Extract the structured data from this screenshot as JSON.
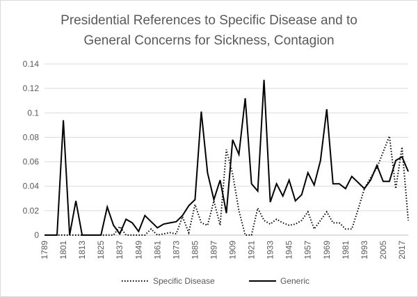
{
  "chart_data": {
    "type": "line",
    "title": "Presidential References to Specific Disease and to General Concerns for Sickness, Contagion",
    "title_lines": [
      "Presidential References to Specific Disease and to",
      "General Concerns for Sickness, Contagion"
    ],
    "xlabel": "",
    "ylabel": "",
    "ylim": [
      0,
      0.14
    ],
    "yticks": [
      "0",
      "0.02",
      "0.04",
      "0.06",
      "0.08",
      "0.1",
      "0.12",
      "0.14"
    ],
    "xticks": [
      "1789",
      "1801",
      "1813",
      "1825",
      "1837",
      "1849",
      "1861",
      "1873",
      "1885",
      "1897",
      "1909",
      "1921",
      "1933",
      "1945",
      "1957",
      "1969",
      "1981",
      "1993",
      "2005",
      "2017"
    ],
    "grid": "horizontal",
    "legend_position": "bottom",
    "x": [
      1789,
      1793,
      1797,
      1801,
      1805,
      1809,
      1813,
      1817,
      1821,
      1825,
      1829,
      1833,
      1837,
      1841,
      1845,
      1849,
      1853,
      1857,
      1861,
      1865,
      1869,
      1873,
      1877,
      1881,
      1885,
      1889,
      1893,
      1897,
      1901,
      1905,
      1909,
      1913,
      1917,
      1921,
      1925,
      1929,
      1933,
      1937,
      1941,
      1945,
      1949,
      1953,
      1957,
      1961,
      1965,
      1969,
      1973,
      1977,
      1981,
      1985,
      1989,
      1993,
      1997,
      2001,
      2005,
      2009,
      2013,
      2017,
      2021
    ],
    "series": [
      {
        "name": "Specific Disease",
        "style": "dotted",
        "color": "#000000",
        "values": [
          0,
          0,
          0,
          0,
          0,
          0,
          0,
          0,
          0,
          0,
          0,
          0,
          0.007,
          0,
          0,
          0,
          0,
          0.005,
          0,
          0.001,
          0.002,
          0.001,
          0.015,
          0.002,
          0.025,
          0.01,
          0.008,
          0.028,
          0.008,
          0.07,
          0.05,
          0.02,
          0,
          0,
          0.022,
          0.012,
          0.009,
          0.013,
          0.01,
          0.008,
          0.009,
          0.012,
          0.019,
          0.005,
          0.012,
          0.019,
          0.01,
          0.01,
          0.005,
          0.005,
          0.021,
          0.038,
          0.047,
          0.055,
          0.068,
          0.081,
          0.038,
          0.072,
          0.012
        ]
      },
      {
        "name": "Generic",
        "style": "solid",
        "color": "#000000",
        "values": [
          0,
          0,
          0,
          0.094,
          0,
          0.028,
          0,
          0,
          0,
          0,
          0.023,
          0.008,
          0.001,
          0.013,
          0.01,
          0.003,
          0.016,
          0.011,
          0.006,
          0.009,
          0.01,
          0.011,
          0.016,
          0.024,
          0.029,
          0.101,
          0.051,
          0.029,
          0.045,
          0.018,
          0.078,
          0.066,
          0.112,
          0.042,
          0.036,
          0.127,
          0.027,
          0.042,
          0.032,
          0.045,
          0.028,
          0.033,
          0.051,
          0.041,
          0.061,
          0.103,
          0.042,
          0.042,
          0.038,
          0.048,
          0.043,
          0.038,
          0.045,
          0.057,
          0.044,
          0.044,
          0.061,
          0.064,
          0.052
        ]
      }
    ]
  }
}
